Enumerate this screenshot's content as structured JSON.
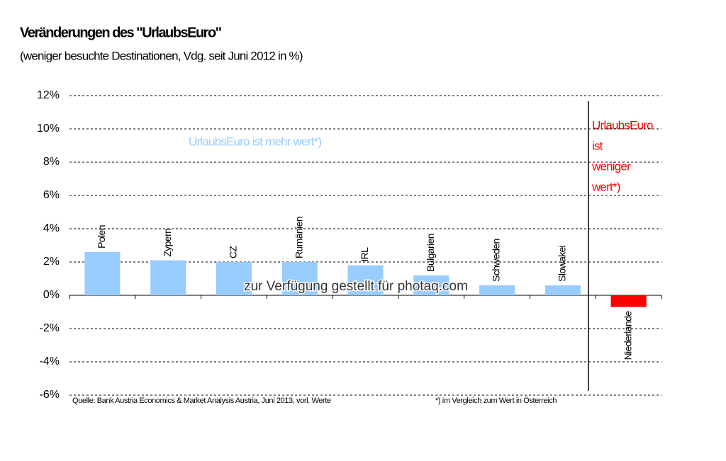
{
  "chart_data": {
    "type": "bar",
    "title": "Veränderungen des \"UrlaubsEuro\"",
    "subtitle": "(weniger besuchte Destinationen, Vdg. seit Juni 2012 in %)",
    "categories": [
      "Polen",
      "Zypern",
      "CZ",
      "Rumänien",
      "IRL",
      "Bulgarien",
      "Schweden",
      "Slowakei",
      "Niederlande"
    ],
    "values": [
      2.6,
      2.1,
      2.0,
      2.0,
      1.8,
      1.2,
      0.6,
      0.6,
      -0.7
    ],
    "colors": [
      "#99ccff",
      "#99ccff",
      "#99ccff",
      "#99ccff",
      "#99ccff",
      "#99ccff",
      "#99ccff",
      "#99ccff",
      "#ff0000"
    ],
    "ylim": [
      -6,
      12
    ],
    "yticks": [
      {
        "value": -6,
        "label": "-6%"
      },
      {
        "value": -4,
        "label": "-4%"
      },
      {
        "value": -2,
        "label": "-2%"
      },
      {
        "value": 0,
        "label": "0%"
      },
      {
        "value": 2,
        "label": "2%"
      },
      {
        "value": 4,
        "label": "4%"
      },
      {
        "value": 6,
        "label": "6%"
      },
      {
        "value": 8,
        "label": "8%"
      },
      {
        "value": 10,
        "label": "10%"
      },
      {
        "value": 12,
        "label": "12%"
      }
    ],
    "grid": true,
    "annotations": {
      "positive": "UrlaubsEuro ist mehr wert*)",
      "negative": [
        "UrlaubsEuro",
        "ist",
        "weniger",
        "wert*)"
      ],
      "source": "Quelle: Bank Austria Economics & Market Analysis Austria, Juni 2013, vorl. Werte",
      "footnote": "*) im Vergleich zum Wert in Österreich",
      "watermark": "zur Verfügung gestellt für photaq.com"
    }
  }
}
